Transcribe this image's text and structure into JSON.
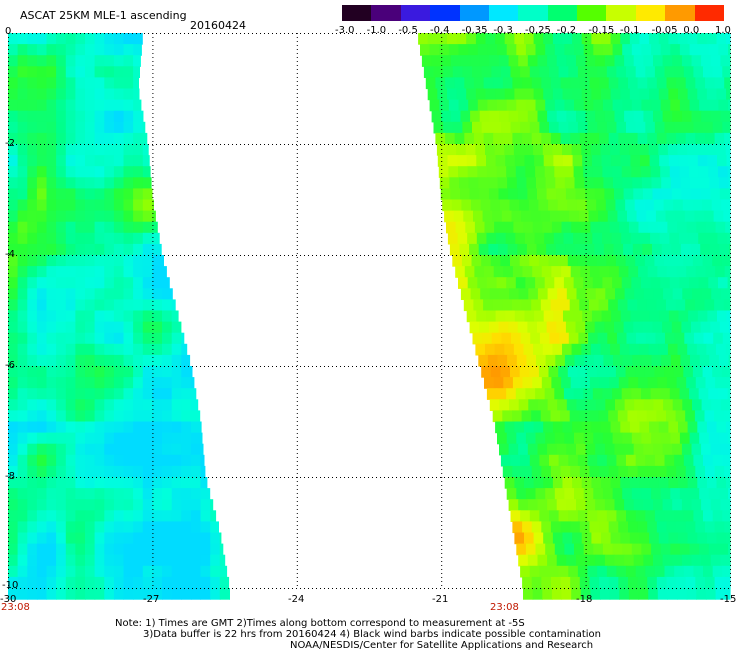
{
  "header": {
    "title": "ASCAT 25KM MLE-1 ascending",
    "date": "20160424"
  },
  "colorbar": {
    "labels": [
      "-3.0",
      "-1.0",
      "-0.5",
      "-0.4",
      "-0.35",
      "-0.3",
      "-0.25",
      "-0.2",
      "-0.15",
      "-0.1",
      "-0.05",
      "0.0",
      "1.0"
    ],
    "colors": [
      "#220022",
      "#4a007a",
      "#3a1adf",
      "#0033ff",
      "#0098ff",
      "#00e8ff",
      "#00ffc8",
      "#00ff70",
      "#55ff00",
      "#c8ff00",
      "#ffea00",
      "#ff9a00",
      "#ff2a00"
    ]
  },
  "axes": {
    "lat_labels": [
      "0",
      "-2",
      "-4",
      "-6",
      "-8",
      "-10"
    ],
    "lon_labels": [
      "-30",
      "-27",
      "-24",
      "-21",
      "-18",
      "-15"
    ],
    "swath_times": [
      "23:08",
      "23:08"
    ]
  },
  "notes": {
    "line1": "Note: 1) Times are GMT 2)Times along bottom correspond to measurement at -5S",
    "line2": "3)Data buffer is 22 hrs from 20160424 4) Black wind barbs indicate possible contamination",
    "line3": "NOAA/NESDIS/Center for Satellite Applications and Research"
  },
  "map_data": {
    "lat_range": [
      -10,
      0
    ],
    "lon_range": [
      -30,
      -15
    ],
    "grid": "dotted",
    "swaths": [
      {
        "name": "west",
        "west_edge_lon": -30.0,
        "east_edge_lat": [
          0,
          -1,
          -2,
          -3,
          -4,
          -5,
          -6,
          -7,
          -8,
          -9,
          -10
        ],
        "east_edge_lon": [
          -27.2,
          -27.3,
          -27.1,
          -27.0,
          -26.8,
          -26.5,
          -26.2,
          -26.0,
          -25.9,
          -25.6,
          -25.4
        ]
      },
      {
        "name": "east",
        "east_edge_lon": -15.0,
        "west_edge_lat": [
          0,
          -1,
          -2,
          -3,
          -4,
          -5,
          -6,
          -7,
          -8,
          -9,
          -10
        ],
        "west_edge_lon": [
          -21.5,
          -21.3,
          -21.1,
          -21.0,
          -20.8,
          -20.5,
          -20.2,
          -19.9,
          -19.7,
          -19.5,
          -19.3
        ]
      }
    ],
    "hotspots": [
      {
        "lat": -3.5,
        "lon": -20.8,
        "value": -0.05
      },
      {
        "lat": -5.6,
        "lon": -19.7,
        "value": -0.05
      },
      {
        "lat": -6.2,
        "lon": -19.9,
        "value": 0.0
      },
      {
        "lat": -9.1,
        "lon": -19.5,
        "value": 0.0
      },
      {
        "lat": -3.1,
        "lon": -27.1,
        "value": -0.1
      }
    ]
  }
}
